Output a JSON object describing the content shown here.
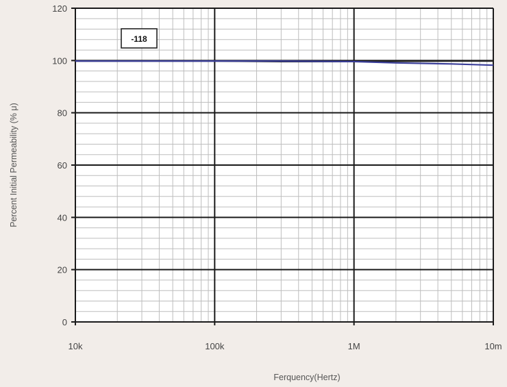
{
  "chart_data": {
    "type": "line",
    "xlabel": "Ferquency(Hertz)",
    "ylabel": "Percent Initial Permeability (% μ)",
    "x_scale": "log",
    "xlim": [
      10000,
      10000000
    ],
    "ylim": [
      0,
      120
    ],
    "x_ticks": [
      {
        "value": 10000,
        "label": "10k"
      },
      {
        "value": 100000,
        "label": "100k"
      },
      {
        "value": 1000000,
        "label": "1M"
      },
      {
        "value": 10000000,
        "label": "10m"
      }
    ],
    "y_ticks": [
      {
        "value": 0,
        "label": "0"
      },
      {
        "value": 20,
        "label": "20"
      },
      {
        "value": 40,
        "label": "40"
      },
      {
        "value": 60,
        "label": "60"
      },
      {
        "value": 80,
        "label": "80"
      },
      {
        "value": 100,
        "label": "100"
      },
      {
        "value": 120,
        "label": "120"
      }
    ],
    "grid": true,
    "annotation": "-118",
    "series": [
      {
        "color": "#222222",
        "x": [
          10000,
          100000,
          300000,
          1000000,
          2000000,
          5000000,
          10000000
        ],
        "y": [
          99.8,
          99.8,
          99.6,
          99.6,
          99.7,
          99.8,
          99.8
        ]
      },
      {
        "color": "#3b3f9a",
        "x": [
          10000,
          100000,
          300000,
          1000000,
          2000000,
          5000000,
          10000000
        ],
        "y": [
          99.8,
          99.8,
          99.8,
          99.6,
          99.1,
          98.7,
          98.2
        ]
      }
    ]
  }
}
